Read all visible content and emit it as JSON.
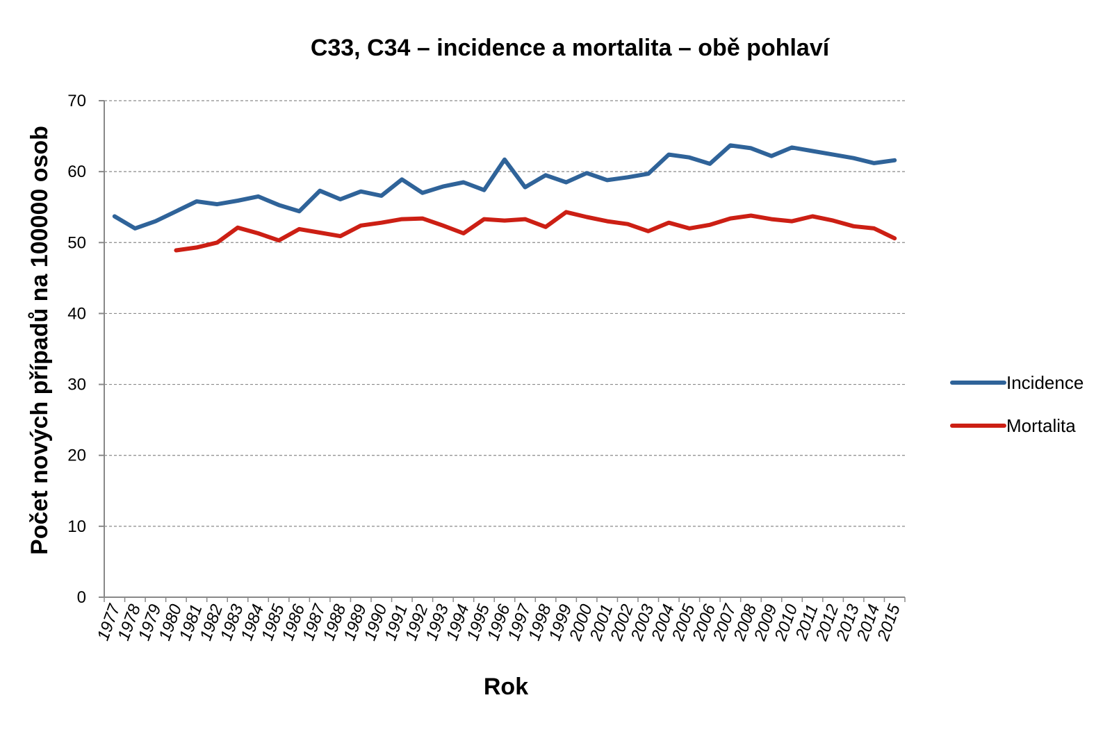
{
  "chart_data": {
    "type": "line",
    "title": "C33, C34 – incidence a mortalita – obě pohlaví",
    "xlabel": "Rok",
    "ylabel": "Počet nových případů na 100000 osob",
    "ylim": [
      0,
      70
    ],
    "yticks": [
      "0",
      "10",
      "20",
      "30",
      "40",
      "50",
      "60",
      "70"
    ],
    "grid": "horizontal-dashed",
    "legend_position": "right",
    "categories": [
      "1977",
      "1978",
      "1979",
      "1980",
      "1981",
      "1982",
      "1983",
      "1984",
      "1985",
      "1986",
      "1987",
      "1988",
      "1989",
      "1990",
      "1991",
      "1992",
      "1993",
      "1994",
      "1995",
      "1996",
      "1997",
      "1998",
      "1999",
      "2000",
      "2001",
      "2002",
      "2003",
      "2004",
      "2005",
      "2006",
      "2007",
      "2008",
      "2009",
      "2010",
      "2011",
      "2012",
      "2013",
      "2014",
      "2015"
    ],
    "series": [
      {
        "name": "Incidence",
        "color": "#2F6399",
        "values": [
          53.7,
          52.0,
          53.0,
          54.4,
          55.8,
          55.4,
          55.9,
          56.5,
          55.3,
          54.4,
          57.3,
          56.1,
          57.2,
          56.6,
          58.9,
          57.0,
          57.9,
          58.5,
          57.4,
          61.7,
          57.8,
          59.5,
          58.5,
          59.8,
          58.8,
          59.2,
          59.7,
          62.4,
          62.0,
          61.1,
          63.7,
          63.3,
          62.2,
          63.4,
          62.9,
          62.4,
          61.9,
          61.2,
          61.6
        ]
      },
      {
        "name": "Mortalita",
        "color": "#CC1F14",
        "values": [
          null,
          null,
          null,
          48.9,
          49.3,
          50.0,
          52.1,
          51.3,
          50.3,
          51.9,
          51.4,
          50.9,
          52.4,
          52.8,
          53.3,
          53.4,
          52.4,
          51.3,
          53.3,
          53.1,
          53.3,
          52.2,
          54.3,
          53.6,
          53.0,
          52.6,
          51.6,
          52.8,
          52.0,
          52.5,
          53.4,
          53.8,
          53.3,
          53.0,
          53.7,
          53.1,
          52.3,
          52.0,
          50.6
        ]
      }
    ]
  }
}
